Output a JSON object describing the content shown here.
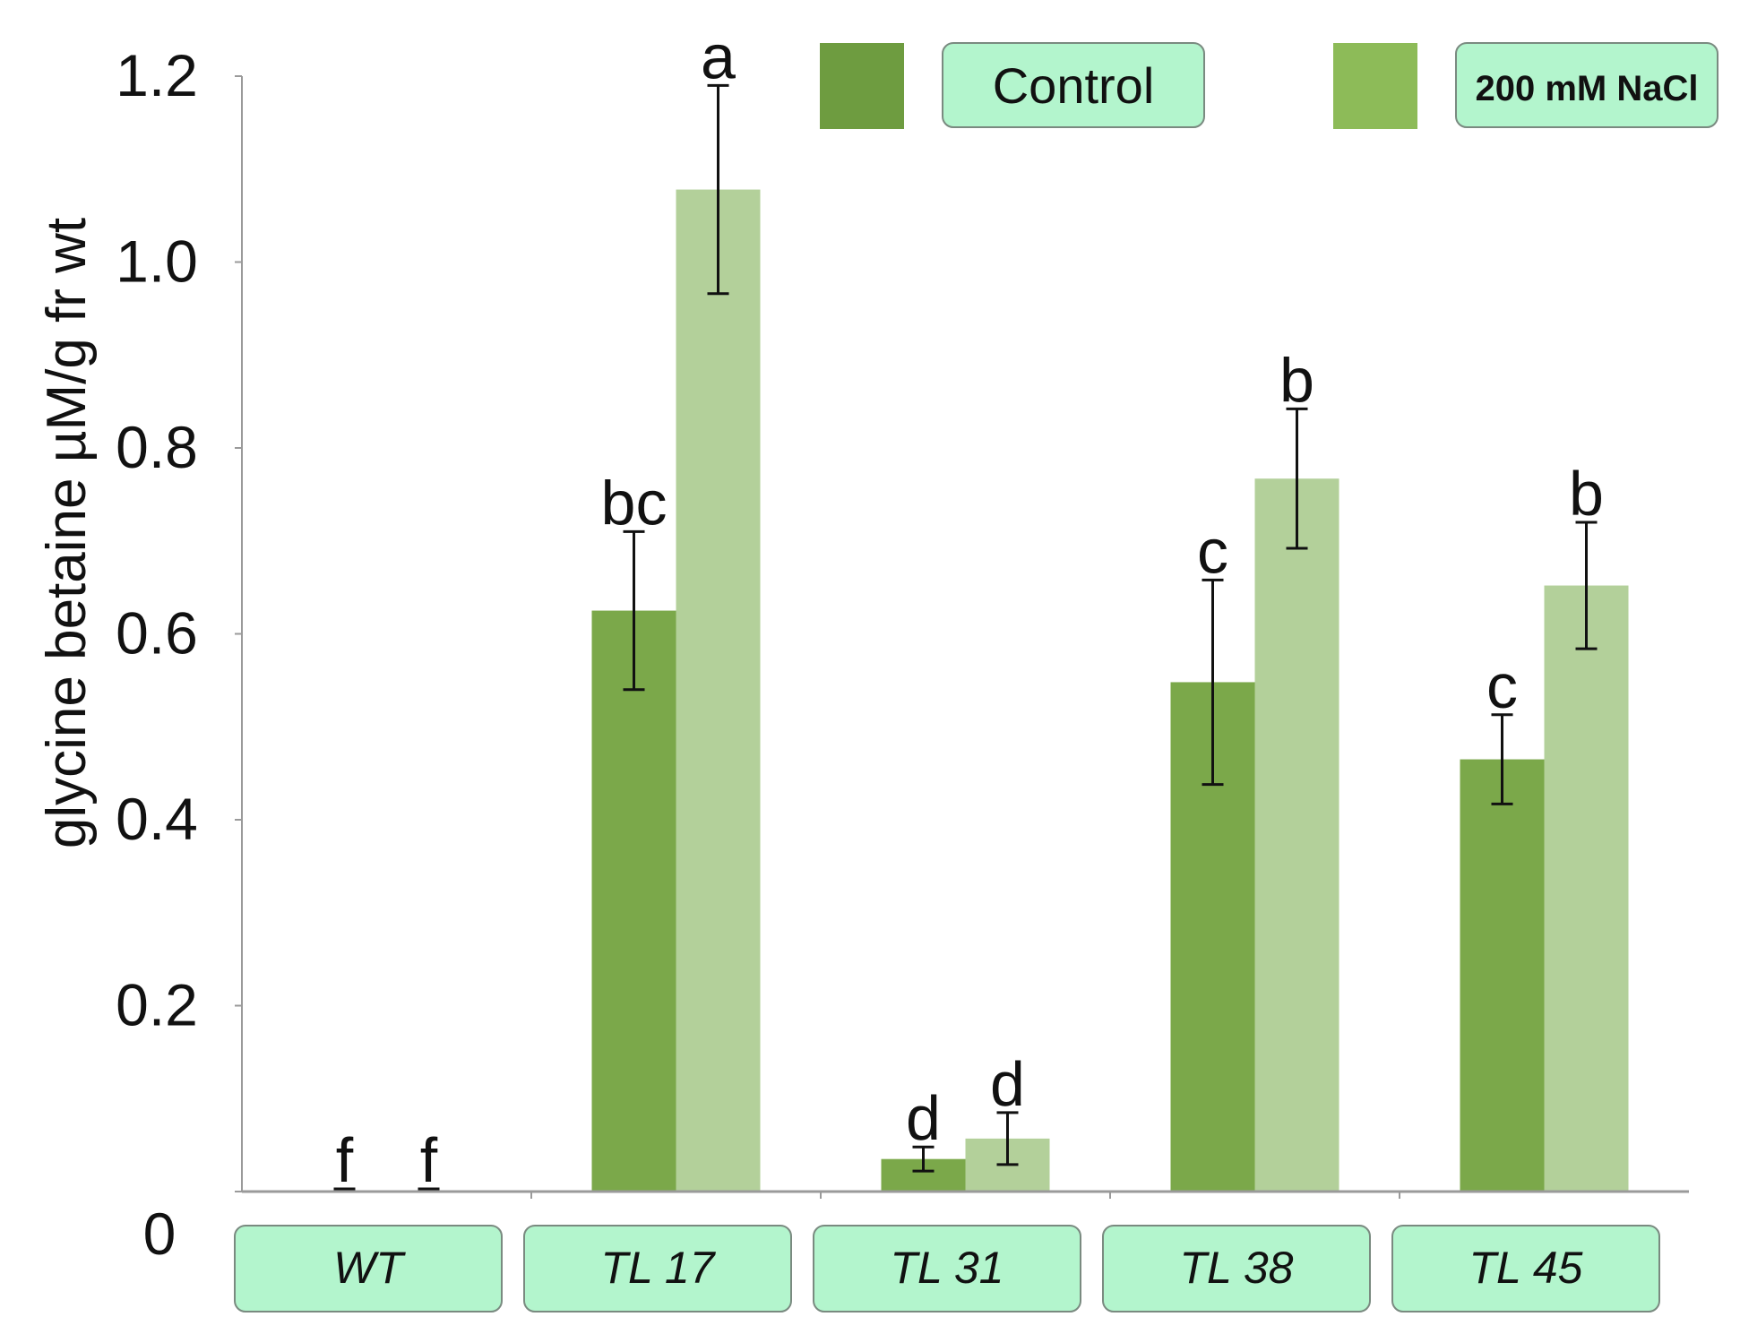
{
  "chart_data": {
    "type": "bar",
    "title": "",
    "xlabel": "",
    "ylabel": "glycine betaine µM/g fr wt",
    "ylim": [
      0,
      1.2
    ],
    "yticks": [
      "0",
      "0.2",
      "0.4",
      "0.6",
      "0.8",
      "1.0",
      "1.2"
    ],
    "ytick_values": [
      0,
      0.2,
      0.4,
      0.6,
      0.8,
      1.0,
      1.2
    ],
    "categories": [
      "WT",
      "TL 17",
      "TL 31",
      "TL 38",
      "TL 45"
    ],
    "series": [
      {
        "name": "Control",
        "color": "#7ba84a",
        "values": [
          0.0,
          0.625,
          0.035,
          0.548,
          0.465
        ],
        "errors": [
          0.0,
          0.085,
          0.013,
          0.11,
          0.048
        ],
        "letters": [
          "f",
          "bc",
          "d",
          "c",
          "c"
        ]
      },
      {
        "name": "200 mM NaCl",
        "color": "#b3d09a",
        "values": [
          0.0,
          1.078,
          0.057,
          0.767,
          0.652
        ],
        "errors": [
          0.0,
          0.112,
          0.028,
          0.075,
          0.068
        ],
        "letters": [
          "f",
          "a",
          "d",
          "b",
          "b"
        ]
      }
    ],
    "legend": {
      "placement": "top-right",
      "swatch_colors": [
        "#6e9c40",
        "#8dbb58"
      ],
      "box_color": "#b3f5cd"
    },
    "grid": false
  }
}
